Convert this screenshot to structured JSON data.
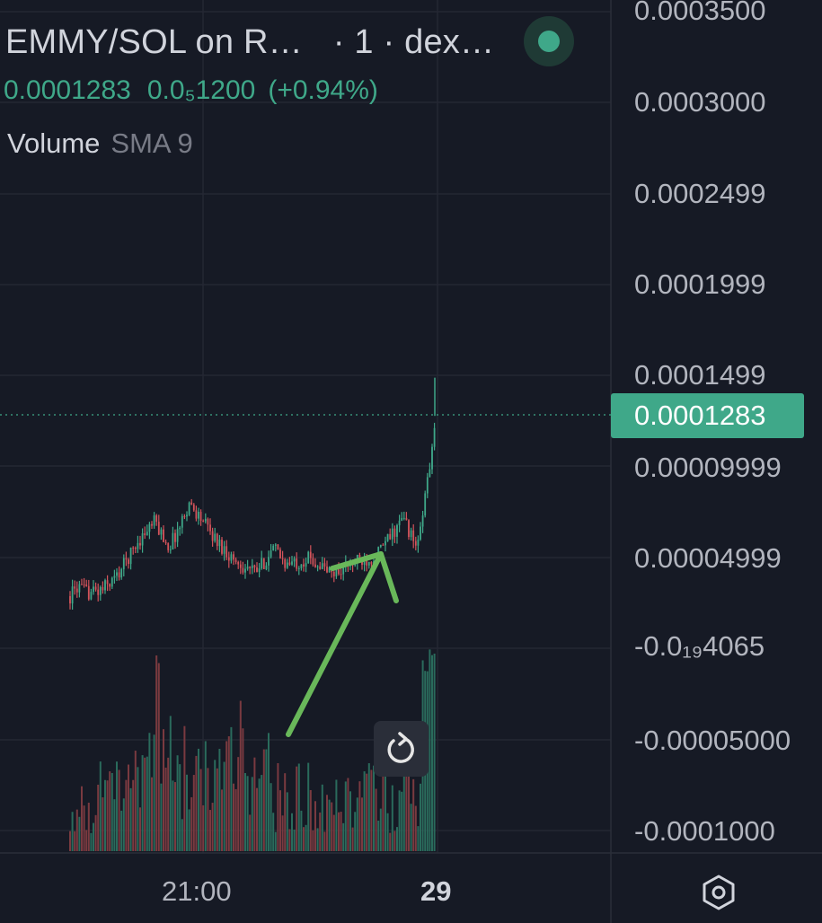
{
  "header": {
    "title_parts": [
      "EMMY/SOL on R…",
      "· 1 ·",
      "dex…"
    ],
    "price": "0.0001283",
    "open_price": "0.0₅1200",
    "change": "(+0.94%)"
  },
  "volume_legend": {
    "label": "Volume",
    "indicator": "SMA 9"
  },
  "icons": {
    "live": "live-status-dot-icon",
    "reset": "reset-rotate-icon",
    "settings": "hexagon-settings-icon"
  },
  "colors": {
    "background": "#161a25",
    "up": "#3fa889",
    "down": "#d3535a",
    "volume_up": "#2a6b5c",
    "volume_down": "#7a3a40",
    "annotation_arrow": "#69b85a",
    "price_tag": "#3fa889"
  },
  "chart_data": {
    "type": "candlestick",
    "last_price": 0.0001283,
    "last_price_label": "0.0001283",
    "y_ticks": [
      "0.0003500",
      "0.0003000",
      "0.0002499",
      "0.0001999",
      "0.0001499",
      "0.00009999",
      "0.00004999",
      "-0.0₁₉4065",
      "-0.00005000",
      "-0.0001000"
    ],
    "x_ticks": [
      "21:00",
      "29"
    ],
    "annotation": "hand-drawn arrow pointing to breakout",
    "series": [
      {
        "name": "Volume",
        "type": "bar"
      },
      {
        "name": "SMA 9",
        "type": "line"
      }
    ]
  }
}
